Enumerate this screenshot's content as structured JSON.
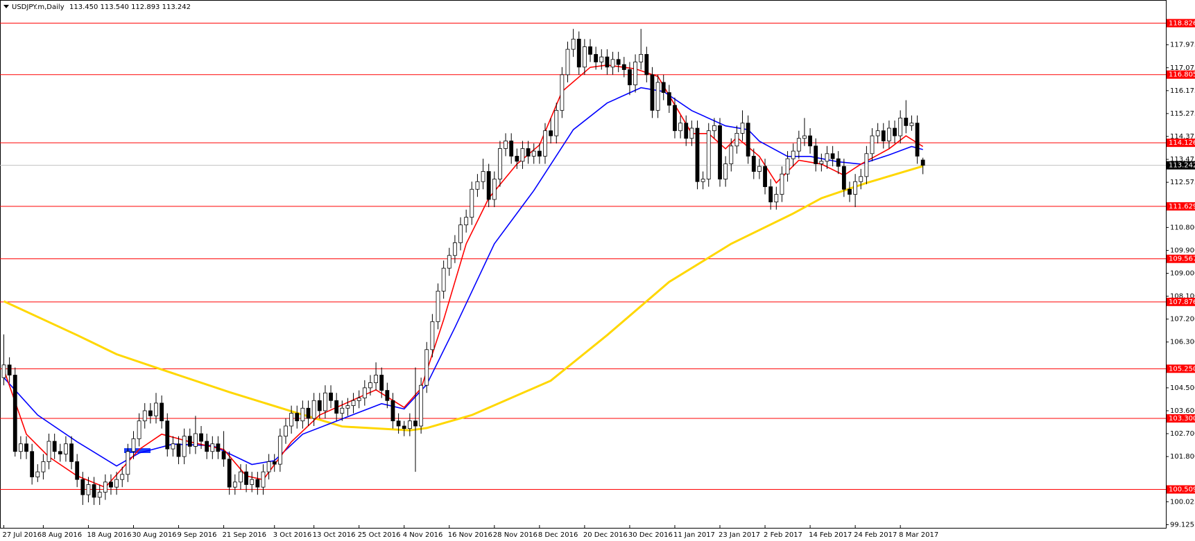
{
  "chart_data": {
    "type": "candlestick",
    "title": "USDJPY.m,Daily",
    "quote": "113.450 113.540 112.893 113.242",
    "categories": [
      "27 Jul 2016",
      null,
      null,
      null,
      null,
      null,
      null,
      "8 Aug 2016",
      null,
      null,
      null,
      null,
      null,
      null,
      null,
      "18 Aug 2016",
      null,
      null,
      null,
      null,
      null,
      null,
      null,
      "30 Aug 2016",
      null,
      null,
      null,
      null,
      null,
      null,
      null,
      "9 Sep 2016",
      null,
      null,
      null,
      null,
      null,
      null,
      null,
      "21 Sep 2016",
      null,
      null,
      null,
      null,
      null,
      null,
      null,
      null,
      "3 Oct 2016",
      null,
      null,
      null,
      null,
      null,
      null,
      "13 Oct 2016",
      null,
      null,
      null,
      null,
      null,
      null,
      null,
      "25 Oct 2016",
      null,
      null,
      null,
      null,
      null,
      null,
      null,
      "4 Nov 2016",
      null,
      null,
      null,
      null,
      null,
      null,
      null,
      "16 Nov 2016",
      null,
      null,
      null,
      null,
      null,
      null,
      null,
      "28 Nov 2016",
      null,
      null,
      null,
      null,
      null,
      null,
      null,
      "8 Dec 2016",
      null,
      null,
      null,
      null,
      null,
      null,
      null,
      "20 Dec 2016",
      null,
      null,
      null,
      null,
      null,
      null,
      null,
      "30 Dec 2016",
      null,
      null,
      null,
      null,
      null,
      null,
      null,
      "11 Jan 2017",
      null,
      null,
      null,
      null,
      null,
      null,
      null,
      "23 Jan 2017",
      null,
      null,
      null,
      null,
      null,
      null,
      null,
      "2 Feb 2017",
      null,
      null,
      null,
      null,
      null,
      null,
      null,
      "14 Feb 2017",
      null,
      null,
      null,
      null,
      null,
      null,
      null,
      "24 Feb 2017",
      null,
      null,
      null,
      null,
      null,
      null,
      null,
      "8 Mar 2017",
      null,
      null,
      null,
      null
    ],
    "values": [
      [
        104.9,
        106.6,
        104.6,
        105.4
      ],
      [
        105.4,
        105.7,
        104.7,
        105.0
      ],
      [
        105.0,
        105.3,
        101.8,
        102.0
      ],
      [
        102.0,
        102.6,
        101.7,
        102.3
      ],
      [
        102.3,
        102.6,
        101.7,
        102.0
      ],
      [
        102.0,
        102.3,
        100.7,
        101.0
      ],
      [
        101.0,
        101.5,
        100.8,
        101.2
      ],
      [
        101.2,
        101.9,
        100.9,
        101.6
      ],
      [
        101.6,
        102.7,
        101.3,
        102.4
      ],
      [
        102.4,
        102.7,
        101.7,
        102.0
      ],
      [
        102.0,
        102.3,
        101.6,
        101.9
      ],
      [
        101.9,
        102.6,
        101.6,
        102.3
      ],
      [
        102.3,
        102.6,
        101.3,
        101.6
      ],
      [
        101.6,
        101.9,
        100.6,
        100.9
      ],
      [
        100.9,
        101.2,
        99.9,
        100.3
      ],
      [
        100.3,
        101.0,
        100.0,
        100.7
      ],
      [
        100.7,
        101.0,
        99.9,
        100.2
      ],
      [
        100.2,
        100.7,
        99.9,
        100.4
      ],
      [
        100.4,
        101.1,
        100.1,
        100.8
      ],
      [
        100.8,
        101.1,
        100.3,
        100.6
      ],
      [
        100.6,
        101.2,
        100.3,
        100.9
      ],
      [
        100.9,
        101.4,
        100.6,
        101.1
      ],
      [
        101.1,
        102.3,
        100.8,
        102.0
      ],
      [
        102.0,
        102.8,
        101.7,
        102.5
      ],
      [
        102.5,
        103.5,
        102.2,
        103.2
      ],
      [
        103.2,
        103.9,
        102.9,
        103.6
      ],
      [
        103.6,
        103.9,
        103.1,
        103.4
      ],
      [
        103.4,
        104.3,
        103.1,
        103.9
      ],
      [
        103.9,
        104.2,
        102.9,
        103.2
      ],
      [
        103.2,
        103.5,
        101.8,
        102.1
      ],
      [
        102.1,
        102.6,
        101.8,
        102.3
      ],
      [
        102.3,
        102.6,
        101.5,
        101.8
      ],
      [
        101.8,
        102.9,
        101.5,
        102.6
      ],
      [
        102.6,
        102.9,
        101.9,
        102.2
      ],
      [
        102.2,
        103.4,
        101.9,
        102.7
      ],
      [
        102.7,
        103.0,
        102.1,
        102.4
      ],
      [
        102.4,
        102.7,
        101.7,
        102.0
      ],
      [
        102.0,
        102.6,
        101.7,
        102.3
      ],
      [
        102.3,
        102.6,
        101.7,
        102.0
      ],
      [
        102.0,
        102.8,
        101.4,
        101.7
      ],
      [
        101.7,
        102.0,
        100.3,
        100.6
      ],
      [
        100.6,
        101.1,
        100.3,
        100.8
      ],
      [
        100.8,
        101.5,
        100.5,
        101.2
      ],
      [
        101.2,
        101.5,
        100.4,
        100.7
      ],
      [
        100.7,
        101.2,
        100.4,
        100.9
      ],
      [
        100.9,
        101.2,
        100.3,
        100.6
      ],
      [
        100.6,
        101.5,
        100.3,
        101.2
      ],
      [
        101.2,
        101.9,
        100.9,
        101.6
      ],
      [
        101.6,
        101.9,
        101.2,
        101.5
      ],
      [
        101.5,
        102.9,
        101.2,
        102.6
      ],
      [
        102.6,
        103.3,
        102.3,
        103.0
      ],
      [
        103.0,
        103.8,
        102.7,
        103.5
      ],
      [
        103.5,
        103.8,
        102.9,
        103.2
      ],
      [
        103.2,
        104.0,
        102.9,
        103.7
      ],
      [
        103.7,
        104.0,
        103.0,
        103.3
      ],
      [
        103.3,
        104.3,
        103.0,
        104.0
      ],
      [
        104.0,
        104.3,
        103.3,
        103.6
      ],
      [
        103.6,
        104.6,
        103.3,
        104.3
      ],
      [
        104.3,
        104.6,
        103.7,
        104.0
      ],
      [
        104.0,
        104.3,
        103.2,
        103.5
      ],
      [
        103.5,
        104.0,
        103.2,
        103.7
      ],
      [
        103.7,
        104.1,
        103.4,
        103.8
      ],
      [
        103.8,
        104.3,
        103.5,
        104.0
      ],
      [
        104.0,
        104.4,
        103.7,
        104.1
      ],
      [
        104.1,
        104.8,
        103.8,
        104.5
      ],
      [
        104.5,
        105.0,
        104.2,
        104.7
      ],
      [
        104.7,
        105.5,
        104.4,
        105.0
      ],
      [
        105.0,
        105.3,
        104.1,
        104.4
      ],
      [
        104.4,
        104.7,
        103.7,
        104.0
      ],
      [
        104.0,
        104.3,
        102.9,
        103.2
      ],
      [
        103.2,
        103.5,
        102.7,
        103.0
      ],
      [
        103.0,
        103.2,
        102.6,
        102.9
      ],
      [
        102.9,
        103.5,
        102.6,
        103.2
      ],
      [
        103.2,
        105.3,
        101.2,
        103.0
      ],
      [
        103.0,
        104.9,
        102.7,
        104.6
      ],
      [
        104.6,
        106.3,
        104.3,
        106.0
      ],
      [
        106.0,
        107.4,
        105.7,
        107.1
      ],
      [
        107.1,
        108.6,
        106.8,
        108.3
      ],
      [
        108.3,
        109.5,
        108.0,
        109.2
      ],
      [
        109.2,
        110.0,
        108.9,
        109.7
      ],
      [
        109.7,
        110.5,
        109.4,
        110.2
      ],
      [
        110.2,
        111.2,
        109.9,
        110.9
      ],
      [
        110.9,
        111.5,
        110.6,
        111.2
      ],
      [
        111.2,
        112.6,
        110.9,
        112.3
      ],
      [
        112.3,
        112.9,
        112.0,
        112.6
      ],
      [
        112.6,
        113.5,
        112.3,
        113.0
      ],
      [
        113.0,
        113.3,
        111.6,
        111.9
      ],
      [
        111.9,
        113.0,
        111.6,
        112.7
      ],
      [
        112.7,
        114.2,
        112.4,
        113.9
      ],
      [
        113.9,
        114.5,
        113.6,
        114.2
      ],
      [
        114.2,
        114.5,
        113.3,
        113.6
      ],
      [
        113.6,
        113.9,
        113.1,
        113.4
      ],
      [
        113.4,
        114.2,
        113.1,
        113.9
      ],
      [
        113.9,
        114.2,
        113.3,
        113.6
      ],
      [
        113.6,
        114.1,
        113.3,
        113.8
      ],
      [
        113.8,
        114.1,
        113.3,
        113.6
      ],
      [
        113.6,
        114.9,
        113.3,
        114.6
      ],
      [
        114.6,
        115.1,
        114.1,
        114.4
      ],
      [
        114.4,
        115.7,
        114.1,
        115.4
      ],
      [
        115.4,
        117.1,
        115.1,
        116.8
      ],
      [
        116.8,
        118.1,
        116.5,
        117.8
      ],
      [
        117.8,
        118.6,
        117.5,
        118.2
      ],
      [
        118.2,
        118.5,
        116.8,
        117.1
      ],
      [
        117.1,
        118.2,
        116.8,
        117.9
      ],
      [
        117.9,
        118.2,
        117.3,
        117.6
      ],
      [
        117.6,
        117.9,
        117.0,
        117.3
      ],
      [
        117.3,
        117.8,
        117.0,
        117.5
      ],
      [
        117.5,
        117.8,
        116.8,
        117.1
      ],
      [
        117.1,
        117.7,
        116.8,
        117.4
      ],
      [
        117.4,
        117.7,
        116.9,
        117.2
      ],
      [
        117.2,
        117.5,
        116.7,
        117.0
      ],
      [
        117.0,
        117.3,
        116.0,
        116.4
      ],
      [
        116.4,
        117.6,
        116.1,
        117.3
      ],
      [
        117.3,
        118.6,
        117.0,
        117.6
      ],
      [
        117.6,
        117.9,
        116.5,
        116.8
      ],
      [
        116.8,
        117.1,
        115.1,
        115.4
      ],
      [
        115.4,
        116.8,
        115.1,
        116.5
      ],
      [
        116.5,
        116.8,
        115.8,
        116.1
      ],
      [
        116.1,
        116.4,
        115.3,
        115.6
      ],
      [
        115.6,
        115.9,
        114.3,
        114.6
      ],
      [
        114.6,
        115.2,
        114.3,
        114.9
      ],
      [
        114.9,
        115.2,
        114.0,
        114.3
      ],
      [
        114.3,
        115.0,
        114.0,
        114.7
      ],
      [
        114.7,
        115.0,
        112.3,
        112.6
      ],
      [
        112.6,
        113.0,
        112.3,
        112.7
      ],
      [
        112.7,
        114.9,
        112.4,
        114.6
      ],
      [
        114.6,
        115.1,
        114.3,
        114.8
      ],
      [
        114.8,
        115.1,
        112.4,
        112.7
      ],
      [
        112.7,
        113.6,
        112.4,
        113.3
      ],
      [
        113.3,
        114.3,
        113.0,
        114.0
      ],
      [
        114.0,
        114.8,
        113.7,
        114.5
      ],
      [
        114.5,
        115.4,
        114.2,
        114.9
      ],
      [
        114.9,
        115.2,
        113.3,
        113.6
      ],
      [
        113.6,
        113.9,
        112.7,
        113.0
      ],
      [
        113.0,
        113.5,
        112.7,
        113.2
      ],
      [
        113.2,
        113.5,
        112.1,
        112.4
      ],
      [
        112.4,
        112.7,
        111.5,
        111.8
      ],
      [
        111.8,
        112.4,
        111.5,
        112.1
      ],
      [
        112.1,
        113.2,
        111.8,
        112.9
      ],
      [
        112.9,
        113.8,
        112.6,
        113.5
      ],
      [
        113.5,
        114.1,
        113.2,
        113.8
      ],
      [
        113.8,
        114.6,
        113.5,
        114.3
      ],
      [
        114.3,
        115.1,
        114.0,
        114.4
      ],
      [
        114.4,
        114.7,
        113.7,
        114.0
      ],
      [
        114.0,
        114.3,
        113.0,
        113.3
      ],
      [
        113.3,
        113.7,
        113.0,
        113.4
      ],
      [
        113.4,
        114.0,
        113.1,
        113.7
      ],
      [
        113.7,
        114.0,
        113.2,
        113.5
      ],
      [
        113.5,
        113.8,
        112.9,
        113.2
      ],
      [
        113.2,
        113.5,
        112.0,
        112.3
      ],
      [
        112.3,
        112.6,
        111.8,
        112.1
      ],
      [
        112.1,
        112.9,
        111.6,
        112.6
      ],
      [
        112.6,
        113.1,
        112.3,
        112.8
      ],
      [
        112.8,
        114.0,
        112.5,
        113.7
      ],
      [
        113.7,
        114.7,
        113.4,
        114.4
      ],
      [
        114.4,
        114.9,
        114.1,
        114.6
      ],
      [
        114.6,
        114.9,
        113.9,
        114.2
      ],
      [
        114.2,
        115.0,
        113.9,
        114.7
      ],
      [
        114.7,
        115.0,
        114.1,
        114.4
      ],
      [
        114.4,
        115.4,
        114.1,
        115.1
      ],
      [
        115.1,
        115.8,
        114.5,
        114.8
      ],
      [
        114.8,
        115.2,
        114.6,
        114.9
      ],
      [
        114.9,
        115.2,
        113.3,
        113.6
      ],
      [
        113.45,
        113.54,
        112.893,
        113.242
      ]
    ],
    "up_color": "#ffffff",
    "down_color": "#000000",
    "lines": [
      {
        "color": "#ffd700",
        "x": [
          0,
          13,
          20,
          28,
          40,
          51,
          60,
          72,
          75,
          83,
          97,
          107,
          118,
          129,
          140,
          145,
          153,
          163
        ],
        "values": [
          107.9,
          106.57,
          105.82,
          105.22,
          104.33,
          103.58,
          102.98,
          102.83,
          102.92,
          103.43,
          104.78,
          106.57,
          108.66,
          110.16,
          111.35,
          111.95,
          112.55,
          113.21
        ]
      },
      {
        "color": "#0000ff",
        "x": [
          0,
          6,
          13,
          20,
          24,
          30,
          37,
          44,
          48,
          53,
          60,
          67,
          71,
          75,
          80,
          87,
          94,
          101,
          107,
          113,
          117,
          122,
          128,
          132,
          134,
          139,
          143,
          148,
          152,
          157,
          161,
          163
        ],
        "values": [
          104.9,
          103.43,
          102.38,
          101.43,
          101.94,
          102.29,
          102.23,
          101.49,
          101.64,
          102.68,
          103.28,
          103.88,
          103.67,
          104.63,
          106.87,
          110.16,
          112.25,
          114.64,
          115.69,
          116.29,
          116.14,
          115.39,
          114.79,
          114.64,
          114.19,
          113.59,
          113.59,
          113.38,
          113.29,
          113.65,
          113.98,
          113.86
        ]
      },
      {
        "color": "#ff0000",
        "x": [
          0,
          4,
          8,
          13,
          18,
          24,
          28,
          33,
          39,
          43,
          46,
          51,
          56,
          62,
          66,
          71,
          74,
          78,
          82,
          86,
          91,
          95,
          99,
          104,
          107,
          112,
          116,
          120,
          122,
          125,
          128,
          130,
          134,
          137,
          141,
          145,
          149,
          152,
          157,
          160,
          163
        ],
        "values": [
          105.22,
          102.68,
          101.79,
          101.04,
          100.59,
          102.08,
          102.68,
          102.38,
          102.08,
          101.04,
          100.89,
          102.38,
          103.43,
          104.03,
          104.42,
          103.73,
          104.48,
          107.17,
          110.16,
          111.95,
          113.29,
          114.04,
          116.14,
          117.09,
          117.18,
          117.03,
          116.73,
          115.24,
          114.49,
          114.49,
          113.89,
          114.34,
          113.59,
          112.55,
          113.44,
          113.29,
          112.85,
          113.29,
          113.89,
          114.4,
          113.98
        ]
      }
    ],
    "levels": [
      118.826,
      116.805,
      114.126,
      111.629,
      109.567,
      107.876,
      {
        "value": 105.25,
        "label": "105.250"
      },
      {
        "value": 103.3,
        "label": "103.300"
      },
      100.509
    ],
    "level_color": "#ff0000",
    "last_price": 113.242,
    "ylim": [
      99.0,
      119.3
    ],
    "yticks": [
      99.125,
      100.025,
      {
        "value": 101.8,
        "label": "101.800"
      },
      {
        "value": 102.7,
        "label": "102.700"
      },
      {
        "value": 103.6,
        "label": "103.600"
      },
      {
        "value": 104.5,
        "label": "104.500"
      },
      {
        "value": 106.3,
        "label": "106.300"
      },
      {
        "value": 107.2,
        "label": "107.200"
      },
      {
        "value": 108.1,
        "label": "108.100"
      },
      {
        "value": 109.0,
        "label": "109.000"
      },
      {
        "value": 109.9,
        "label": "109.900"
      },
      {
        "value": 110.8,
        "label": "110.800"
      },
      112.575,
      113.475,
      114.375,
      115.275,
      116.175,
      117.075,
      117.975
    ],
    "grid": false
  }
}
